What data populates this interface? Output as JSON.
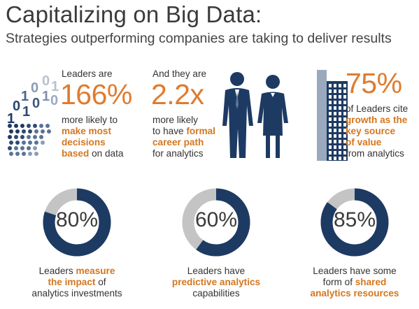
{
  "title": "Capitalizing on Big Data:",
  "subtitle": "Strategies outperforming companies are taking to deliver results",
  "colors": {
    "navy": "#1d3a63",
    "orange": "#e07b2e",
    "gray": "#c4c4c4"
  },
  "stat1": {
    "pre": "Leaders are",
    "value": "166%",
    "post": "more likely to",
    "hl1": "make most",
    "hl2": "decisions",
    "hl3": "based",
    "tail": " on data",
    "icon": "binary-data-icon"
  },
  "stat2": {
    "pre1": "And they are",
    "value": "2.2x",
    "post1": "more likely",
    "post2_pre": "to have ",
    "hl1": "formal",
    "hl2": "career path",
    "tail": "for analytics",
    "icon": "business-people-icon"
  },
  "stat3": {
    "value": "75%",
    "post1": "of Leaders cite",
    "hl1": "growth as the",
    "hl2": "key source",
    "hl3": "of value",
    "tail": "from analytics",
    "icon": "skyscraper-icon"
  },
  "donuts": [
    {
      "percent": 80,
      "label": "80%",
      "line1": "Leaders ",
      "hl1": "measure",
      "hl2": "the impact",
      "tail2": " of",
      "line3": "analytics investments"
    },
    {
      "percent": 60,
      "label": "60%",
      "line1": "Leaders have",
      "hl1": "predictive analytics",
      "line3": "capabilities"
    },
    {
      "percent": 85,
      "label": "85%",
      "line1": "Leaders have some",
      "pre2": "form of ",
      "hl1": "shared",
      "hl2": "analytics resources"
    }
  ]
}
